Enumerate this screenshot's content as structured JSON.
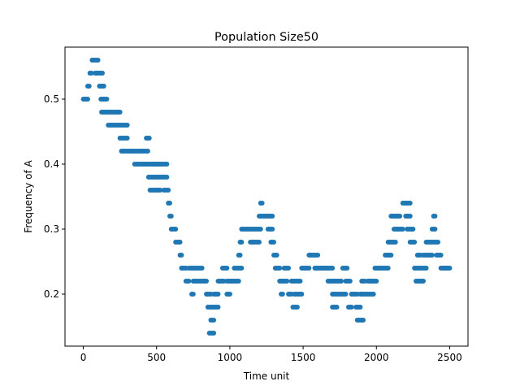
{
  "chart_data": {
    "type": "scatter",
    "title": "Population Size50",
    "xlabel": "Time unit",
    "ylabel": "Frequency of A",
    "xlim": [
      -125,
      2625
    ],
    "ylim": [
      0.12,
      0.58
    ],
    "xticks": [
      0,
      500,
      1000,
      1500,
      2000,
      2500
    ],
    "xtick_labels": [
      "0",
      "500",
      "1000",
      "1500",
      "2000",
      "2500"
    ],
    "yticks": [
      0.2,
      0.3,
      0.4,
      0.5
    ],
    "ytick_labels": [
      "0.2",
      "0.3",
      "0.4",
      "0.5"
    ],
    "grid": false,
    "marker_color": "#1f77b4",
    "segments": [
      [
        0,
        30,
        0.5
      ],
      [
        30,
        45,
        0.52
      ],
      [
        45,
        60,
        0.54
      ],
      [
        60,
        100,
        0.56
      ],
      [
        80,
        130,
        0.54
      ],
      [
        110,
        140,
        0.52
      ],
      [
        120,
        160,
        0.5
      ],
      [
        125,
        170,
        0.48
      ],
      [
        170,
        250,
        0.48
      ],
      [
        170,
        300,
        0.46
      ],
      [
        250,
        300,
        0.44
      ],
      [
        260,
        330,
        0.42
      ],
      [
        330,
        400,
        0.42
      ],
      [
        350,
        420,
        0.4
      ],
      [
        400,
        440,
        0.42
      ],
      [
        420,
        480,
        0.4
      ],
      [
        430,
        450,
        0.44
      ],
      [
        445,
        520,
        0.38
      ],
      [
        455,
        530,
        0.36
      ],
      [
        480,
        510,
        0.4
      ],
      [
        510,
        550,
        0.4
      ],
      [
        520,
        570,
        0.38
      ],
      [
        550,
        560,
        0.36
      ],
      [
        560,
        570,
        0.4
      ],
      [
        570,
        580,
        0.36
      ],
      [
        580,
        590,
        0.34
      ],
      [
        590,
        600,
        0.32
      ],
      [
        600,
        630,
        0.3
      ],
      [
        630,
        660,
        0.28
      ],
      [
        660,
        670,
        0.26
      ],
      [
        670,
        700,
        0.24
      ],
      [
        700,
        720,
        0.22
      ],
      [
        720,
        760,
        0.24
      ],
      [
        740,
        750,
        0.2
      ],
      [
        750,
        840,
        0.22
      ],
      [
        770,
        810,
        0.24
      ],
      [
        840,
        870,
        0.2
      ],
      [
        850,
        880,
        0.18
      ],
      [
        860,
        890,
        0.14
      ],
      [
        870,
        890,
        0.16
      ],
      [
        890,
        920,
        0.18
      ],
      [
        890,
        920,
        0.2
      ],
      [
        920,
        960,
        0.22
      ],
      [
        950,
        980,
        0.24
      ],
      [
        980,
        1000,
        0.2
      ],
      [
        980,
        1010,
        0.22
      ],
      [
        1000,
        1060,
        0.22
      ],
      [
        1030,
        1050,
        0.24
      ],
      [
        1060,
        1070,
        0.26
      ],
      [
        1060,
        1080,
        0.24
      ],
      [
        1070,
        1080,
        0.28
      ],
      [
        1080,
        1160,
        0.3
      ],
      [
        1140,
        1160,
        0.28
      ],
      [
        1160,
        1200,
        0.28
      ],
      [
        1170,
        1210,
        0.3
      ],
      [
        1200,
        1250,
        0.32
      ],
      [
        1210,
        1220,
        0.34
      ],
      [
        1250,
        1290,
        0.32
      ],
      [
        1260,
        1290,
        0.3
      ],
      [
        1280,
        1300,
        0.28
      ],
      [
        1300,
        1320,
        0.26
      ],
      [
        1310,
        1340,
        0.24
      ],
      [
        1340,
        1360,
        0.22
      ],
      [
        1350,
        1360,
        0.2
      ],
      [
        1360,
        1390,
        0.22
      ],
      [
        1370,
        1400,
        0.24
      ],
      [
        1400,
        1420,
        0.2
      ],
      [
        1420,
        1440,
        0.22
      ],
      [
        1430,
        1460,
        0.18
      ],
      [
        1440,
        1490,
        0.2
      ],
      [
        1450,
        1480,
        0.22
      ],
      [
        1490,
        1540,
        0.24
      ],
      [
        1540,
        1600,
        0.26
      ],
      [
        1580,
        1650,
        0.24
      ],
      [
        1600,
        1700,
        0.24
      ],
      [
        1670,
        1720,
        0.22
      ],
      [
        1700,
        1730,
        0.18
      ],
      [
        1700,
        1740,
        0.2
      ],
      [
        1720,
        1760,
        0.22
      ],
      [
        1750,
        1790,
        0.2
      ],
      [
        1770,
        1800,
        0.24
      ],
      [
        1790,
        1820,
        0.22
      ],
      [
        1810,
        1830,
        0.18
      ],
      [
        1830,
        1870,
        0.2
      ],
      [
        1860,
        1890,
        0.18
      ],
      [
        1870,
        1910,
        0.16
      ],
      [
        1890,
        1940,
        0.2
      ],
      [
        1900,
        1920,
        0.22
      ],
      [
        1940,
        1970,
        0.22
      ],
      [
        1950,
        1980,
        0.2
      ],
      [
        1960,
        2000,
        0.22
      ],
      [
        1990,
        2020,
        0.24
      ],
      [
        2020,
        2080,
        0.24
      ],
      [
        2060,
        2100,
        0.26
      ],
      [
        2080,
        2130,
        0.28
      ],
      [
        2100,
        2140,
        0.32
      ],
      [
        2120,
        2150,
        0.3
      ],
      [
        2130,
        2160,
        0.32
      ],
      [
        2150,
        2180,
        0.3
      ],
      [
        2180,
        2230,
        0.34
      ],
      [
        2200,
        2230,
        0.32
      ],
      [
        2210,
        2250,
        0.3
      ],
      [
        2230,
        2260,
        0.28
      ],
      [
        2260,
        2290,
        0.24
      ],
      [
        2270,
        2300,
        0.22
      ],
      [
        2280,
        2300,
        0.26
      ],
      [
        2300,
        2320,
        0.22
      ],
      [
        2300,
        2340,
        0.24
      ],
      [
        2320,
        2350,
        0.26
      ],
      [
        2340,
        2360,
        0.28
      ],
      [
        2360,
        2380,
        0.26
      ],
      [
        2370,
        2390,
        0.28
      ],
      [
        2380,
        2400,
        0.3
      ],
      [
        2390,
        2400,
        0.32
      ],
      [
        2400,
        2420,
        0.28
      ],
      [
        2410,
        2440,
        0.26
      ],
      [
        2440,
        2490,
        0.24
      ],
      [
        2450,
        2500,
        0.24
      ]
    ],
    "sample_step": 10
  }
}
